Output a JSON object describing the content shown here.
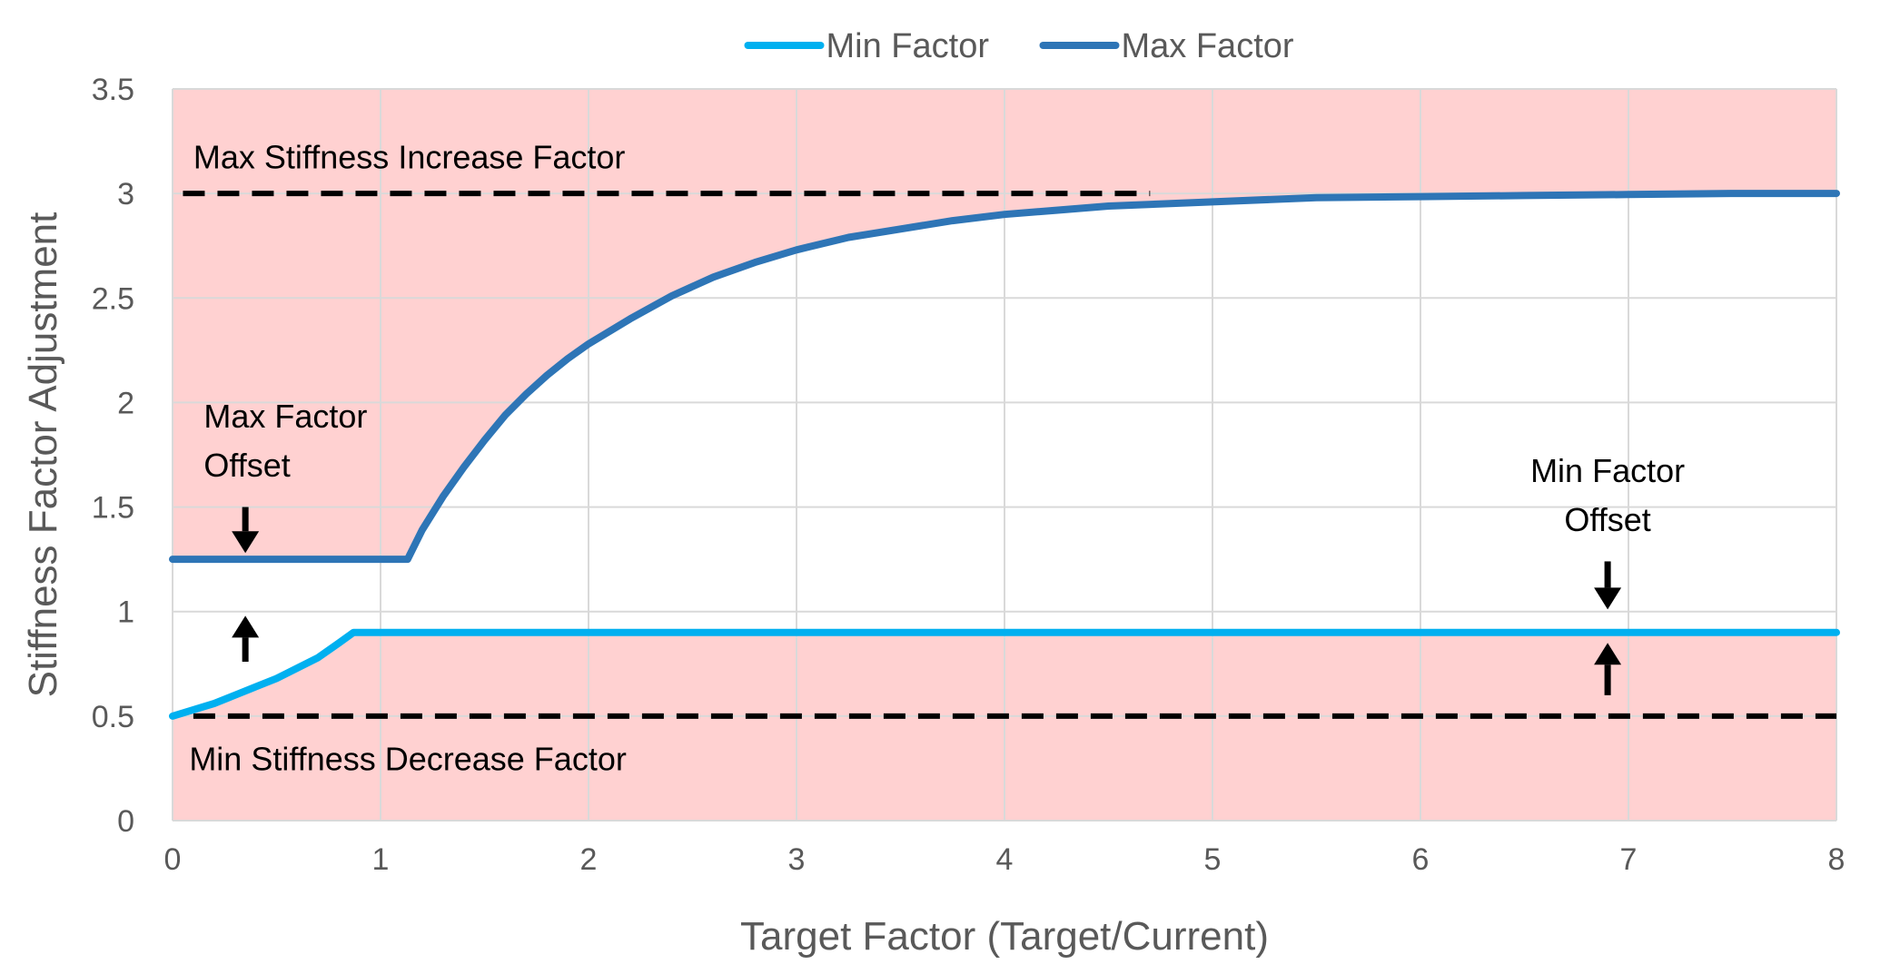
{
  "chart_data": {
    "type": "line",
    "xlabel": "Target Factor (Target/Current)",
    "ylabel": "Stiffness Factor Adjustment",
    "xlim": [
      0,
      8
    ],
    "ylim": [
      0,
      3.5
    ],
    "x_ticks": [
      "0",
      "1",
      "2",
      "3",
      "4",
      "5",
      "6",
      "7",
      "8"
    ],
    "y_ticks": [
      "0",
      "0.5",
      "1",
      "1.5",
      "2",
      "2.5",
      "3",
      "3.5"
    ],
    "grid": true,
    "legend": "top-center",
    "colors": {
      "min_factor": "#00b0f0",
      "max_factor": "#2e75b6",
      "shaded_region": "#ffd1d1",
      "reference_line": "#000000"
    },
    "series": [
      {
        "name": "Min Factor",
        "points": [
          [
            0,
            0.5
          ],
          [
            0.1,
            0.53
          ],
          [
            0.2,
            0.56
          ],
          [
            0.3,
            0.6
          ],
          [
            0.4,
            0.64
          ],
          [
            0.5,
            0.68
          ],
          [
            0.6,
            0.73
          ],
          [
            0.7,
            0.78
          ],
          [
            0.8,
            0.85
          ],
          [
            0.87,
            0.9
          ],
          [
            8,
            0.9
          ]
        ]
      },
      {
        "name": "Max Factor",
        "points": [
          [
            0,
            1.25
          ],
          [
            1.13,
            1.25
          ],
          [
            1.2,
            1.39
          ],
          [
            1.3,
            1.55
          ],
          [
            1.4,
            1.69
          ],
          [
            1.5,
            1.82
          ],
          [
            1.6,
            1.94
          ],
          [
            1.7,
            2.04
          ],
          [
            1.8,
            2.13
          ],
          [
            1.9,
            2.21
          ],
          [
            2.0,
            2.28
          ],
          [
            2.2,
            2.4
          ],
          [
            2.4,
            2.51
          ],
          [
            2.6,
            2.6
          ],
          [
            2.8,
            2.67
          ],
          [
            3.0,
            2.73
          ],
          [
            3.25,
            2.79
          ],
          [
            3.5,
            2.83
          ],
          [
            3.75,
            2.87
          ],
          [
            4.0,
            2.9
          ],
          [
            4.25,
            2.92
          ],
          [
            4.5,
            2.94
          ],
          [
            5.0,
            2.96
          ],
          [
            5.5,
            2.98
          ],
          [
            6.0,
            2.985
          ],
          [
            6.5,
            2.99
          ],
          [
            7.0,
            2.995
          ],
          [
            7.5,
            3.0
          ],
          [
            8.0,
            3.0
          ]
        ]
      }
    ],
    "unshaded_band": {
      "lower_series": "Min Factor",
      "upper_series": "Max Factor"
    },
    "reference_lines": [
      {
        "y": 3.0,
        "x_start": 0.05,
        "x_end": 4.7
      },
      {
        "y": 0.5,
        "x_start": 0.1,
        "x_end": 8.0
      }
    ],
    "annotations": [
      {
        "id": "max_stiffness",
        "lines": [
          "Max Stiffness Increase Factor"
        ],
        "x": 0.1,
        "y": 3.12,
        "anchor": "start"
      },
      {
        "id": "min_stiffness",
        "lines": [
          "Min Stiffness Decrease Factor"
        ],
        "x": 0.08,
        "y": 0.24,
        "anchor": "start"
      },
      {
        "id": "max_offset",
        "lines": [
          "Max Factor",
          "Offset"
        ],
        "x": 0.15,
        "y": 1.88,
        "anchor": "start"
      },
      {
        "id": "min_offset",
        "lines": [
          "Min Factor",
          "Offset"
        ],
        "x": 6.9,
        "y": 1.62,
        "anchor": "middle"
      }
    ],
    "arrows": [
      {
        "x": 0.35,
        "y_from": 1.5,
        "y_to": 1.28,
        "direction": "down"
      },
      {
        "x": 0.35,
        "y_from": 0.76,
        "y_to": 0.98,
        "direction": "up"
      },
      {
        "x": 6.9,
        "y_from": 1.24,
        "y_to": 1.01,
        "direction": "down"
      },
      {
        "x": 6.9,
        "y_from": 0.6,
        "y_to": 0.85,
        "direction": "up"
      }
    ]
  }
}
